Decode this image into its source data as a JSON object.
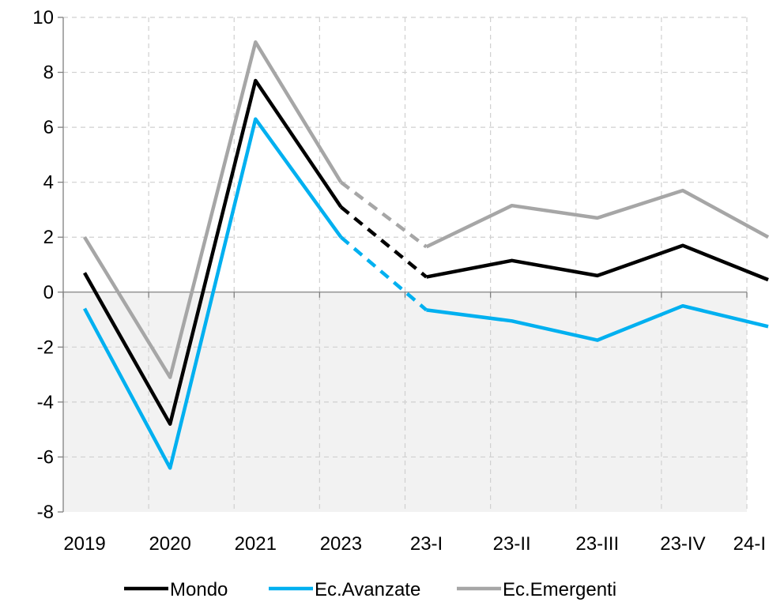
{
  "chart_data": {
    "type": "line",
    "title": "",
    "xlabel": "",
    "ylabel": "",
    "categories": [
      "2019",
      "2020",
      "2021",
      "2023",
      "23-I",
      "23-II",
      "23-III",
      "23-IV",
      "24-I"
    ],
    "ylim": [
      -8,
      10
    ],
    "yticks": [
      10,
      8,
      6,
      4,
      2,
      0,
      -2,
      -4,
      -6,
      -8
    ],
    "ytick_labels": [
      "10",
      "8",
      "6",
      "4",
      "2",
      "0",
      "-2",
      "-4",
      "-6",
      "-8"
    ],
    "grid": true,
    "negative_region_shaded": true,
    "shade_color": "#f2f2f2",
    "dashed_segment": [
      "2023",
      "23-I"
    ],
    "legend_position": "bottom",
    "series": [
      {
        "name": "Mondo",
        "color": "#000000",
        "values": [
          0.7,
          -4.8,
          7.7,
          3.1,
          0.55,
          1.15,
          0.6,
          1.7,
          0.45
        ]
      },
      {
        "name": "Ec.Avanzate",
        "color": "#00b0f0",
        "values": [
          -0.6,
          -6.4,
          6.3,
          2.0,
          -0.65,
          -1.05,
          -1.75,
          -0.5,
          -1.25
        ]
      },
      {
        "name": "Ec.Emergenti",
        "color": "#a6a6a6",
        "values": [
          2.0,
          -3.1,
          9.1,
          4.0,
          1.65,
          3.15,
          2.7,
          3.7,
          2.0
        ]
      }
    ]
  }
}
